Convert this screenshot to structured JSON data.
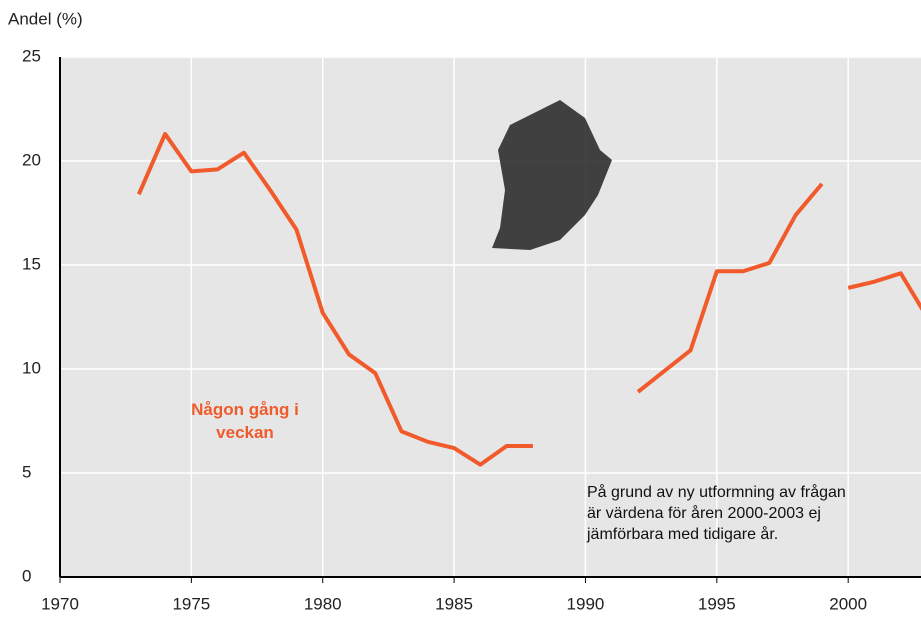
{
  "chart_data": {
    "type": "line",
    "y_label": "Andel (%)",
    "xlim": [
      1970,
      2003
    ],
    "xticks": [
      1970,
      1975,
      1980,
      1985,
      1990,
      1995,
      2000
    ],
    "ylim": [
      0,
      25
    ],
    "yticks": [
      0,
      5,
      10,
      15,
      20,
      25
    ],
    "grid": true,
    "series": [
      {
        "name": "Någon gång i veckan",
        "color": "#f15a2b",
        "x": [
          1973,
          1974,
          1975,
          1976,
          1977,
          1978,
          1979,
          1980,
          1981,
          1982,
          1983,
          1984,
          1985,
          1986,
          1987,
          1988,
          1989,
          1990,
          1991,
          1992,
          1993,
          1994,
          1995,
          1996,
          1997,
          1998,
          1999
        ],
        "values": [
          18.4,
          21.3,
          19.5,
          19.6,
          20.4,
          18.6,
          16.7,
          12.7,
          10.7,
          9.8,
          7.0,
          6.5,
          6.2,
          5.4,
          6.3,
          6.3,
          null,
          null,
          null,
          8.9,
          9.9,
          10.9,
          14.7,
          14.7,
          15.1,
          17.4,
          18.9
        ]
      },
      {
        "color": "#f15a2b",
        "x": [
          2000,
          2001,
          2002,
          2003
        ],
        "values": [
          13.9,
          14.2,
          14.6,
          12.5
        ]
      }
    ],
    "annotation": [
      "På grund av ny utformning av frågan",
      "är värdena för åren 2000-2003 ej",
      "jämförbara med tidigare år."
    ]
  }
}
